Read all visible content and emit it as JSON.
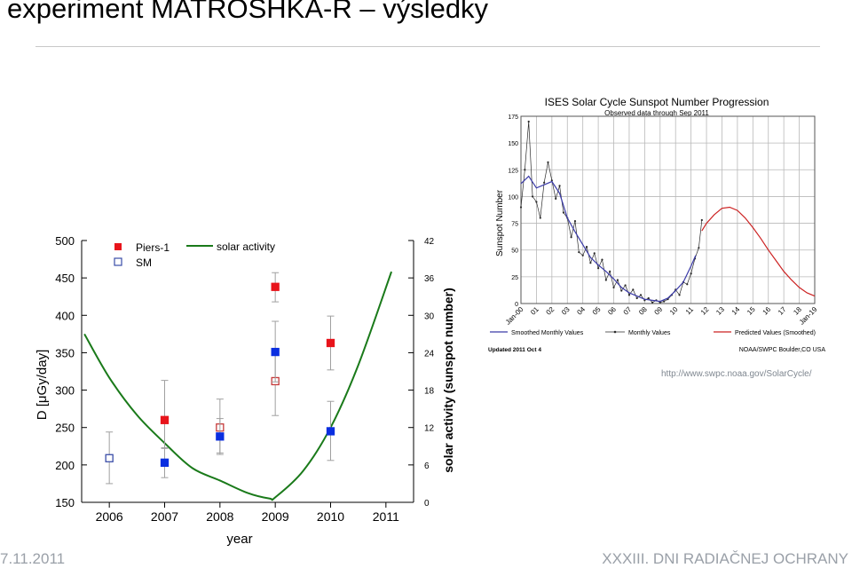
{
  "slide": {
    "title": "experiment MATROSHKA-R – výsledky",
    "footer_left": "7.11.2011",
    "footer_right": "XXXIII. DNI RADIAČNEJ OCHRANY",
    "source_url": "http://www.swpc.noaa.gov/SolarCycle/"
  },
  "chart_data": [
    {
      "type": "scatter",
      "xlabel": "year",
      "ylabel": "D [μGy/day]",
      "y2label": "solar activity (sunspot number)",
      "xlim": [
        2005.5,
        2011.5
      ],
      "ylim": [
        150,
        500
      ],
      "y2lim": [
        0,
        42
      ],
      "xticks": [
        "2006",
        "2007",
        "2008",
        "2009",
        "2010",
        "2011"
      ],
      "yticks": [
        "150",
        "200",
        "250",
        "300",
        "350",
        "400",
        "450",
        "500"
      ],
      "y2ticks": [
        "0",
        "6",
        "12",
        "18",
        "24",
        "30",
        "36",
        "42"
      ],
      "legend": [
        "Piers-1",
        "SM",
        "solar activity"
      ],
      "legend_position": "top-left",
      "colors": {
        "piers_filled": "#e8141b",
        "piers_open": "#c63a3a",
        "sm_filled": "#0a2ee0",
        "sm_open": "#3a4da8",
        "solar": "#1a7a1a",
        "error": "#a0a0a0"
      },
      "series": [
        {
          "name": "Piers-1",
          "marker": "filled-square-red",
          "points": [
            {
              "x": 2007,
              "y": 260,
              "err": [
                222,
                313
              ]
            },
            {
              "x": 2009,
              "y": 438,
              "err": [
                418,
                457
              ]
            },
            {
              "x": 2010,
              "y": 363,
              "err": [
                327,
                399
              ]
            }
          ]
        },
        {
          "name": "Piers-1",
          "marker": "open-square-red",
          "points": [
            {
              "x": 2008,
              "y": 250,
              "err": [
                214,
                288
              ]
            },
            {
              "x": 2009,
              "y": 312,
              "err": [
                266,
                348
              ]
            }
          ]
        },
        {
          "name": "SM",
          "marker": "filled-square-blue",
          "points": [
            {
              "x": 2007,
              "y": 203,
              "err": [
                183,
                223
              ]
            },
            {
              "x": 2008,
              "y": 238,
              "err": [
                216,
                262
              ]
            },
            {
              "x": 2009,
              "y": 351,
              "err": [
                311,
                392
              ]
            },
            {
              "x": 2010,
              "y": 245,
              "err": [
                206,
                285
              ]
            }
          ]
        },
        {
          "name": "SM",
          "marker": "open-square-blue",
          "points": [
            {
              "x": 2006,
              "y": 209,
              "err": [
                175,
                244
              ]
            }
          ]
        },
        {
          "name": "solar activity",
          "axis": "right",
          "marker": "line",
          "points": [
            {
              "x": 2005.55,
              "y": 27
            },
            {
              "x": 2006,
              "y": 20
            },
            {
              "x": 2006.5,
              "y": 14
            },
            {
              "x": 2007,
              "y": 9.5
            },
            {
              "x": 2007.5,
              "y": 5.5
            },
            {
              "x": 2008,
              "y": 3.5
            },
            {
              "x": 2008.5,
              "y": 1.5
            },
            {
              "x": 2008.9,
              "y": 0.6
            },
            {
              "x": 2009,
              "y": 0.8
            },
            {
              "x": 2009.5,
              "y": 5
            },
            {
              "x": 2010,
              "y": 12
            },
            {
              "x": 2010.5,
              "y": 22
            },
            {
              "x": 2011.1,
              "y": 37
            }
          ]
        }
      ]
    },
    {
      "type": "line",
      "title": "ISES Solar Cycle Sunspot Number Progression",
      "subtitle": "Observed data through Sep 2011",
      "ylabel": "Sunspot Number",
      "ylim": [
        0,
        175
      ],
      "yticks": [
        "0",
        "25",
        "50",
        "75",
        "100",
        "125",
        "150",
        "175"
      ],
      "xticks": [
        "Jan-00",
        "01",
        "02",
        "03",
        "04",
        "05",
        "06",
        "07",
        "08",
        "09",
        "10",
        "11",
        "12",
        "13",
        "14",
        "15",
        "16",
        "17",
        "18",
        "Jan-19"
      ],
      "legend": [
        "Smoothed Monthly Values",
        "Monthly Values",
        "Predicted Values (Smoothed)"
      ],
      "legend_position": "bottom",
      "updated": "Updated 2011 Oct 4",
      "credit": "NOAA/SWPC Boulder,CO USA",
      "colors": {
        "smoothed": "#3a3aa8",
        "monthly": "#2a2a2a",
        "predicted": "#cc2222",
        "grid": "#b8b8b8"
      },
      "series": [
        {
          "name": "Smoothed Monthly Values",
          "points": [
            {
              "x": 2000.0,
              "y": 112
            },
            {
              "x": 2000.5,
              "y": 119
            },
            {
              "x": 2001.0,
              "y": 108
            },
            {
              "x": 2001.5,
              "y": 111
            },
            {
              "x": 2002.0,
              "y": 114
            },
            {
              "x": 2002.5,
              "y": 103
            },
            {
              "x": 2003.0,
              "y": 80
            },
            {
              "x": 2003.5,
              "y": 67
            },
            {
              "x": 2004.0,
              "y": 55
            },
            {
              "x": 2004.5,
              "y": 43
            },
            {
              "x": 2005.0,
              "y": 36
            },
            {
              "x": 2005.5,
              "y": 30
            },
            {
              "x": 2006.0,
              "y": 23
            },
            {
              "x": 2006.5,
              "y": 15
            },
            {
              "x": 2007.0,
              "y": 10
            },
            {
              "x": 2007.5,
              "y": 7
            },
            {
              "x": 2008.0,
              "y": 4
            },
            {
              "x": 2008.5,
              "y": 3
            },
            {
              "x": 2009.0,
              "y": 2
            },
            {
              "x": 2009.5,
              "y": 5
            },
            {
              "x": 2010.0,
              "y": 12
            },
            {
              "x": 2010.5,
              "y": 20
            },
            {
              "x": 2011.0,
              "y": 35
            },
            {
              "x": 2011.3,
              "y": 45
            }
          ]
        },
        {
          "name": "Monthly Values",
          "points": [
            {
              "x": 2000.0,
              "y": 90
            },
            {
              "x": 2000.25,
              "y": 125
            },
            {
              "x": 2000.5,
              "y": 170
            },
            {
              "x": 2000.75,
              "y": 100
            },
            {
              "x": 2001.0,
              "y": 95
            },
            {
              "x": 2001.25,
              "y": 80
            },
            {
              "x": 2001.5,
              "y": 113
            },
            {
              "x": 2001.75,
              "y": 132
            },
            {
              "x": 2002.0,
              "y": 115
            },
            {
              "x": 2002.25,
              "y": 98
            },
            {
              "x": 2002.5,
              "y": 110
            },
            {
              "x": 2002.75,
              "y": 85
            },
            {
              "x": 2003.0,
              "y": 80
            },
            {
              "x": 2003.25,
              "y": 62
            },
            {
              "x": 2003.5,
              "y": 77
            },
            {
              "x": 2003.75,
              "y": 48
            },
            {
              "x": 2004.0,
              "y": 45
            },
            {
              "x": 2004.25,
              "y": 53
            },
            {
              "x": 2004.5,
              "y": 38
            },
            {
              "x": 2004.75,
              "y": 47
            },
            {
              "x": 2005.0,
              "y": 33
            },
            {
              "x": 2005.25,
              "y": 41
            },
            {
              "x": 2005.5,
              "y": 22
            },
            {
              "x": 2005.75,
              "y": 30
            },
            {
              "x": 2006.0,
              "y": 15
            },
            {
              "x": 2006.25,
              "y": 22
            },
            {
              "x": 2006.5,
              "y": 12
            },
            {
              "x": 2006.75,
              "y": 17
            },
            {
              "x": 2007.0,
              "y": 8
            },
            {
              "x": 2007.25,
              "y": 13
            },
            {
              "x": 2007.5,
              "y": 5
            },
            {
              "x": 2007.75,
              "y": 8
            },
            {
              "x": 2008.0,
              "y": 3
            },
            {
              "x": 2008.25,
              "y": 5
            },
            {
              "x": 2008.5,
              "y": 1
            },
            {
              "x": 2008.75,
              "y": 3
            },
            {
              "x": 2009.0,
              "y": 1
            },
            {
              "x": 2009.25,
              "y": 2
            },
            {
              "x": 2009.5,
              "y": 4
            },
            {
              "x": 2009.75,
              "y": 8
            },
            {
              "x": 2010.0,
              "y": 13
            },
            {
              "x": 2010.25,
              "y": 8
            },
            {
              "x": 2010.5,
              "y": 20
            },
            {
              "x": 2010.75,
              "y": 18
            },
            {
              "x": 2011.0,
              "y": 28
            },
            {
              "x": 2011.25,
              "y": 42
            },
            {
              "x": 2011.5,
              "y": 52
            },
            {
              "x": 2011.7,
              "y": 78
            }
          ]
        },
        {
          "name": "Predicted Values (Smoothed)",
          "points": [
            {
              "x": 2011.7,
              "y": 68
            },
            {
              "x": 2012.0,
              "y": 75
            },
            {
              "x": 2012.5,
              "y": 83
            },
            {
              "x": 2013.0,
              "y": 89
            },
            {
              "x": 2013.5,
              "y": 90
            },
            {
              "x": 2014.0,
              "y": 87
            },
            {
              "x": 2014.5,
              "y": 80
            },
            {
              "x": 2015.0,
              "y": 71
            },
            {
              "x": 2015.5,
              "y": 61
            },
            {
              "x": 2016.0,
              "y": 50
            },
            {
              "x": 2016.5,
              "y": 40
            },
            {
              "x": 2017.0,
              "y": 30
            },
            {
              "x": 2017.5,
              "y": 22
            },
            {
              "x": 2018.0,
              "y": 15
            },
            {
              "x": 2018.5,
              "y": 10
            },
            {
              "x": 2019.0,
              "y": 7
            }
          ]
        }
      ]
    }
  ]
}
